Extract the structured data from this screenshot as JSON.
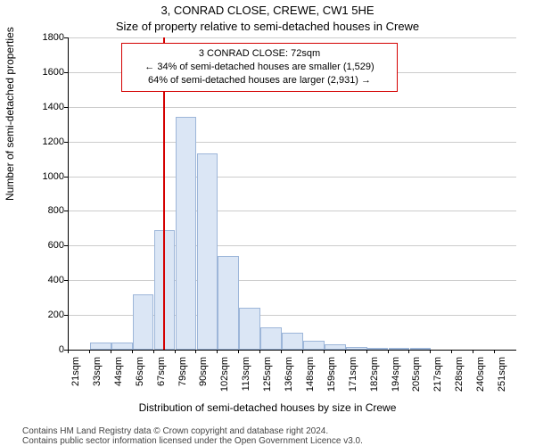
{
  "title": "3, CONRAD CLOSE, CREWE, CW1 5HE",
  "subtitle": "Size of property relative to semi-detached houses in Crewe",
  "ylabel": "Number of semi-detached properties",
  "xlabel": "Distribution of semi-detached houses by size in Crewe",
  "attribution_line1": "Contains HM Land Registry data © Crown copyright and database right 2024.",
  "attribution_line2": "Contains public sector information licensed under the Open Government Licence v3.0.",
  "chart": {
    "type": "histogram",
    "background_color": "#ffffff",
    "axis_color": "#000000",
    "grid_color": "#cccccc",
    "bar_fill": "#dbe6f5",
    "bar_border": "#9db6d9",
    "marker_line_color": "#d40000",
    "annotation_border_color": "#d40000",
    "ylim": [
      0,
      1800
    ],
    "yticks": [
      0,
      200,
      400,
      600,
      800,
      1000,
      1200,
      1400,
      1600,
      1800
    ],
    "x_bin_start": 21,
    "x_bin_width_sqm": 11.5,
    "x_categories": [
      "21sqm",
      "33sqm",
      "44sqm",
      "56sqm",
      "67sqm",
      "79sqm",
      "90sqm",
      "102sqm",
      "113sqm",
      "125sqm",
      "136sqm",
      "148sqm",
      "159sqm",
      "171sqm",
      "182sqm",
      "194sqm",
      "205sqm",
      "217sqm",
      "228sqm",
      "240sqm",
      "251sqm"
    ],
    "values": [
      0,
      40,
      40,
      320,
      690,
      1340,
      1130,
      540,
      240,
      130,
      100,
      50,
      30,
      15,
      10,
      10,
      5,
      0,
      0,
      0,
      0
    ],
    "marker_value_sqm": 72,
    "bar_relative_width": 0.99,
    "axis_fontsize": 11,
    "label_fontsize": 12,
    "title_fontsize": 13
  },
  "annotation": {
    "line1": "3 CONRAD CLOSE: 72sqm",
    "line2": "← 34% of semi-detached houses are smaller (1,529)",
    "line3": "64% of semi-detached houses are larger (2,931) →"
  }
}
